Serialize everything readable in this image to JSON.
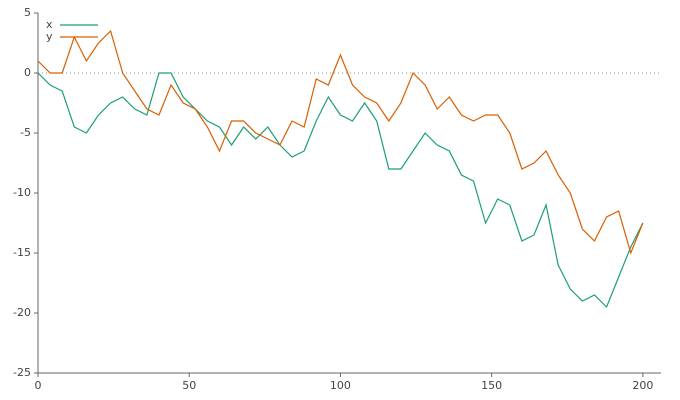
{
  "chart_data": {
    "type": "line",
    "x": [
      0,
      4,
      8,
      12,
      16,
      20,
      24,
      28,
      32,
      36,
      40,
      44,
      48,
      52,
      56,
      60,
      64,
      68,
      72,
      76,
      80,
      84,
      88,
      92,
      96,
      100,
      104,
      108,
      112,
      116,
      120,
      124,
      128,
      132,
      136,
      140,
      144,
      148,
      152,
      156,
      160,
      164,
      168,
      172,
      176,
      180,
      184,
      188,
      192,
      196,
      200
    ],
    "series": [
      {
        "name": "x",
        "color": "#1b9e77",
        "values": [
          0,
          -1,
          -1.5,
          -4.5,
          -5,
          -3.5,
          -2.5,
          -2,
          -3,
          -3.5,
          0,
          0,
          -2,
          -3,
          -4,
          -4.5,
          -6,
          -4.5,
          -5.5,
          -4.5,
          -6,
          -7,
          -6.5,
          -4,
          -2,
          -3.5,
          -4,
          -2.5,
          -4,
          -8,
          -8,
          -6.5,
          -5,
          -6,
          -6.5,
          -8.5,
          -9,
          -12.5,
          -10.5,
          -11,
          -14,
          -13.5,
          -11,
          -16,
          -18,
          -19,
          -18.5,
          -19.5,
          -17,
          -14.5,
          -12.5
        ]
      },
      {
        "name": "y",
        "color": "#d95f02",
        "values": [
          1,
          0,
          0,
          3,
          1,
          2.5,
          3.5,
          0,
          -1.5,
          -3,
          -3.5,
          -1,
          -2.5,
          -3,
          -4.5,
          -6.5,
          -4,
          -4,
          -5,
          -5.5,
          -6,
          -4,
          -4.5,
          -0.5,
          -1,
          1.5,
          -1,
          -2,
          -2.5,
          -4,
          -2.5,
          0,
          -1,
          -3,
          -2,
          -3.5,
          -4,
          -3.5,
          -3.5,
          -5,
          -8,
          -7.5,
          -6.5,
          -8.5,
          -10,
          -13,
          -14,
          -12,
          -11.5,
          -15,
          -12.5
        ]
      }
    ],
    "xlim": [
      0,
      206
    ],
    "ylim": [
      -25,
      5
    ],
    "xticks": [
      0,
      50,
      100,
      150,
      200
    ],
    "yticks": [
      -25,
      -20,
      -15,
      -10,
      -5,
      0,
      5
    ],
    "zeroline": true,
    "legend": "top-left"
  }
}
